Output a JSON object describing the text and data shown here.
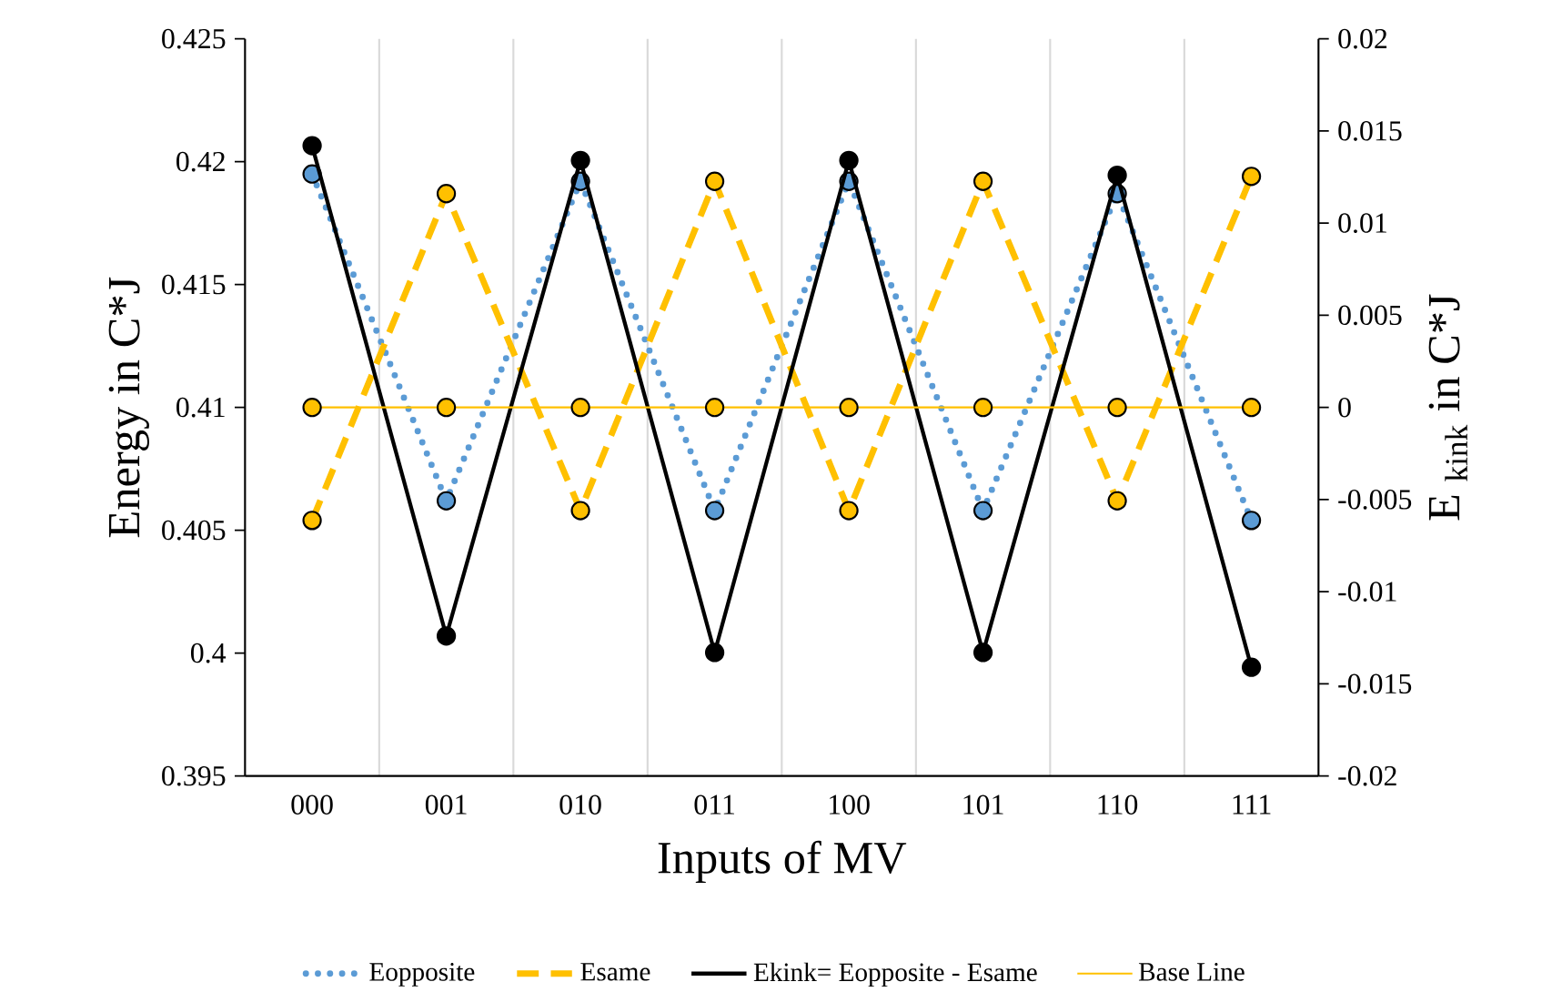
{
  "chart_data": {
    "type": "line",
    "xlabel": "Inputs of MV",
    "ylabel": "Energy  in C*J",
    "y2label": "E $_{kink}$ in C*J",
    "categories": [
      "000",
      "001",
      "010",
      "011",
      "100",
      "101",
      "110",
      "111"
    ],
    "series": [
      {
        "name": "Eopposite",
        "color": "#5b9bd5",
        "line_style": "dotted",
        "marker": "circle",
        "values": [
          0.4195,
          0.4062,
          0.4192,
          0.4058,
          0.4192,
          0.4058,
          0.4187,
          0.4054
        ]
      },
      {
        "name": "Esame",
        "color": "#ffc000",
        "line_style": "dashed",
        "marker": "circle",
        "values": [
          0.4054,
          0.4187,
          0.4058,
          0.4192,
          0.4058,
          0.4192,
          0.4062,
          0.4194
        ]
      },
      {
        "name": "Ekink= Eopposite - Esame",
        "color": "#000000",
        "line_style": "solid",
        "marker": "circle",
        "axis": "y2",
        "values": [
          0.0142,
          -0.0124,
          0.0134,
          -0.0133,
          0.0134,
          -0.0133,
          0.0126,
          -0.0141
        ]
      },
      {
        "name": "Base Line",
        "color": "#ffc000",
        "line_style": "solid",
        "marker": "circle",
        "axis": "y2",
        "values": [
          0,
          0,
          0,
          0,
          0,
          0,
          0,
          0
        ]
      }
    ],
    "ylim": [
      0.395,
      0.425
    ],
    "yticks": [
      0.395,
      0.4,
      0.405,
      0.41,
      0.415,
      0.42,
      0.425
    ],
    "y2lim": [
      -0.02,
      0.02
    ],
    "y2ticks": [
      -0.02,
      -0.015,
      -0.01,
      -0.005,
      0,
      0.005,
      0.01,
      0.015,
      0.02
    ],
    "grid": "x",
    "legend": "bottom"
  }
}
